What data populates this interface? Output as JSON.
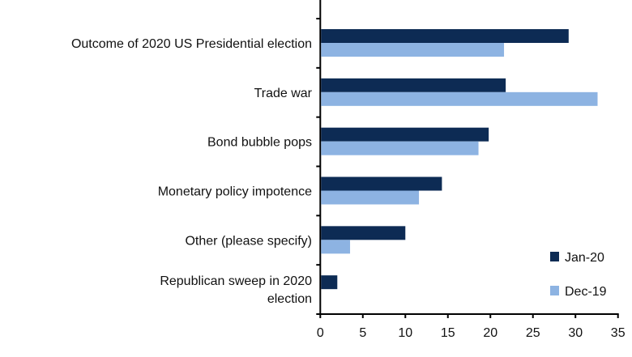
{
  "chart_data": {
    "type": "bar",
    "orientation": "horizontal",
    "categories": [
      [
        "Outcome of 2020 US Presidential election"
      ],
      [
        "Trade war"
      ],
      [
        "Bond bubble pops"
      ],
      [
        "Monetary policy impotence"
      ],
      [
        "Other (please specify)"
      ],
      [
        "Republican sweep in 2020",
        "election"
      ]
    ],
    "series": [
      {
        "name": "Jan-20",
        "color": "#0d2b54",
        "values": [
          29.2,
          21.8,
          19.8,
          14.3,
          10.0,
          2.0
        ]
      },
      {
        "name": "Dec-19",
        "color": "#8db3e2",
        "values": [
          21.6,
          32.6,
          18.6,
          11.6,
          3.5,
          null
        ]
      }
    ],
    "xlim": [
      0,
      35
    ],
    "xticks": [
      0,
      5,
      10,
      15,
      20,
      25,
      30,
      35
    ],
    "grid": false,
    "legend": "bottom-right",
    "title": "",
    "xlabel": "",
    "ylabel": ""
  }
}
